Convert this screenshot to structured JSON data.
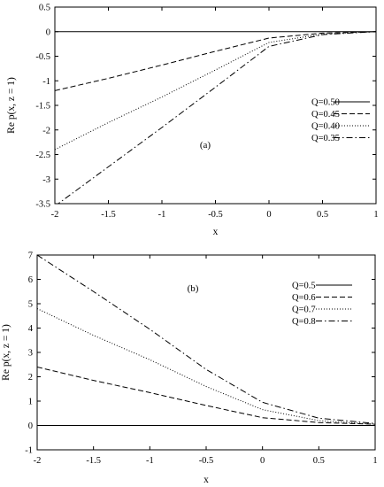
{
  "chart_data": [
    {
      "type": "line",
      "panel_label": "(a)",
      "xlabel": "x",
      "ylabel": "Re p(x, z = 1)",
      "xlim": [
        -2,
        1
      ],
      "ylim": [
        -3.5,
        0.5
      ],
      "x_ticks": [
        "-2",
        "-1.5",
        "-1",
        "-0.5",
        "0",
        "0.5",
        "1"
      ],
      "y_ticks": [
        "0.5",
        "0",
        "-0.5",
        "-1",
        "-1.5",
        "-2",
        "-2.5",
        "-3",
        "-3.5"
      ],
      "legend_position": "lower-right",
      "series": [
        {
          "name": "Q=0.50",
          "style": "solid",
          "x": [
            -2,
            1
          ],
          "y": [
            0,
            0
          ]
        },
        {
          "name": "Q=0.45",
          "style": "dashed",
          "x": [
            -2,
            -1.5,
            -1,
            -0.5,
            0,
            0.5,
            1
          ],
          "y": [
            -1.2,
            -0.95,
            -0.68,
            -0.4,
            -0.13,
            -0.03,
            0
          ]
        },
        {
          "name": "Q=0.40",
          "style": "dotted",
          "x": [
            -2,
            -1.5,
            -1,
            -0.5,
            0,
            0.5,
            1
          ],
          "y": [
            -2.4,
            -1.85,
            -1.33,
            -0.78,
            -0.22,
            -0.05,
            0
          ]
        },
        {
          "name": "Q=0.35",
          "style": "dashdot",
          "x": [
            -2,
            -1.5,
            -1,
            -0.5,
            0,
            0.5,
            1
          ],
          "y": [
            -3.55,
            -2.75,
            -1.95,
            -1.13,
            -0.3,
            -0.06,
            0
          ]
        }
      ]
    },
    {
      "type": "line",
      "panel_label": "(b)",
      "xlabel": "x",
      "ylabel": "Re p(x, z = 1)",
      "xlim": [
        -2,
        1
      ],
      "ylim": [
        -1,
        7
      ],
      "x_ticks": [
        "-2",
        "-1.5",
        "-1",
        "-0.5",
        "0",
        "0.5",
        "1"
      ],
      "y_ticks": [
        "7",
        "6",
        "5",
        "4",
        "3",
        "2",
        "1",
        "0",
        "-1"
      ],
      "legend_position": "top-right",
      "series": [
        {
          "name": "Q=0.5",
          "style": "solid",
          "x": [
            -2,
            1
          ],
          "y": [
            0,
            0
          ]
        },
        {
          "name": "Q=0.6",
          "style": "dashed",
          "x": [
            -2,
            -1.5,
            -1,
            -0.5,
            0,
            0.5,
            1
          ],
          "y": [
            2.4,
            1.85,
            1.35,
            0.82,
            0.32,
            0.12,
            0.05
          ]
        },
        {
          "name": "Q=0.7",
          "style": "dotted",
          "x": [
            -2,
            -1.5,
            -1,
            -0.5,
            0,
            0.5,
            1
          ],
          "y": [
            4.8,
            3.7,
            2.7,
            1.6,
            0.65,
            0.2,
            0.05
          ]
        },
        {
          "name": "Q=0.8",
          "style": "dashdot",
          "x": [
            -2,
            -1.5,
            -1,
            -0.5,
            0,
            0.5,
            1
          ],
          "y": [
            7.0,
            5.5,
            3.95,
            2.3,
            0.95,
            0.3,
            0.08
          ]
        }
      ]
    }
  ]
}
